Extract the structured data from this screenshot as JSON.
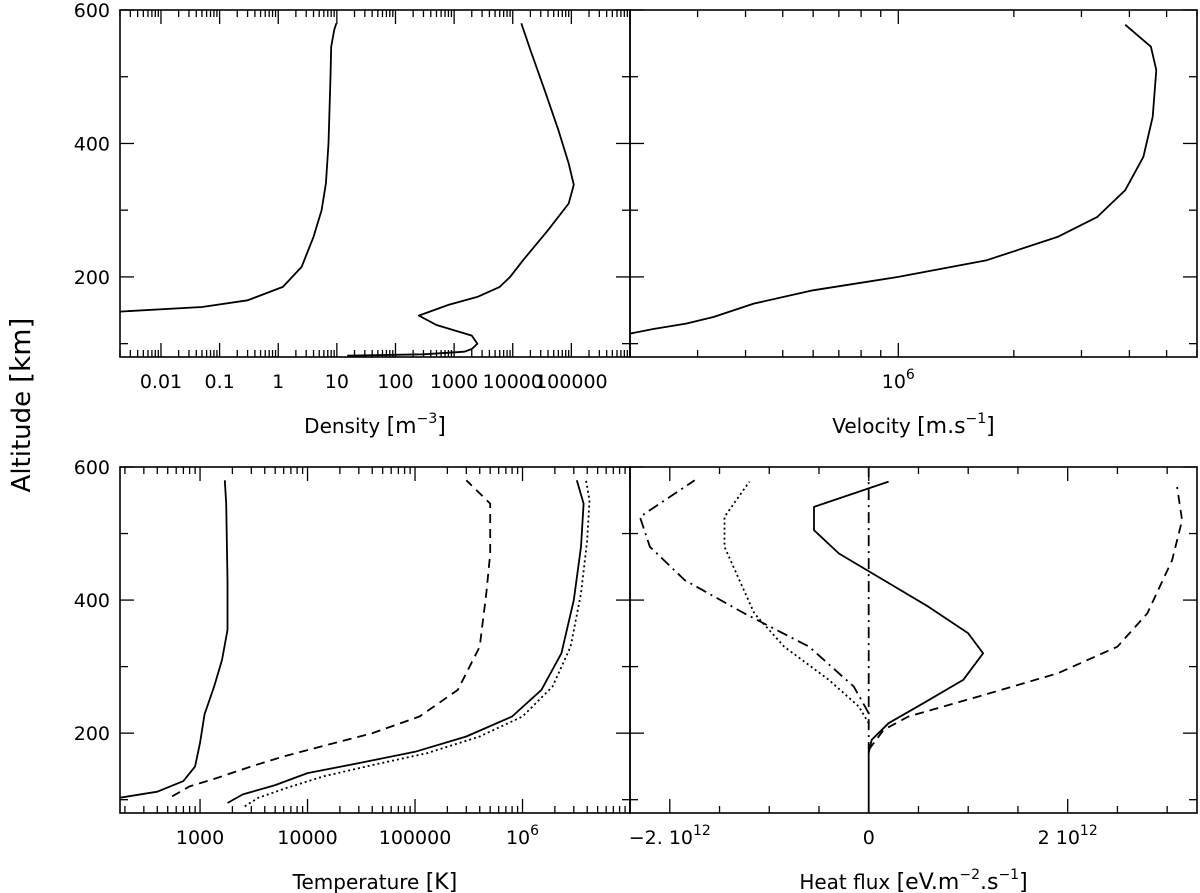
{
  "figure": {
    "ylabel": "Altitude [km]",
    "ylabel_parts": [
      "Altitude",
      "[km]"
    ]
  },
  "chart_data": [
    {
      "id": "density",
      "type": "line",
      "xlabel": "Density",
      "xlabel_unit": "[m",
      "xlabel_exp": "−3",
      "xlabel_close": "]",
      "xscale": "log",
      "xlim": [
        0.002,
        1000000
      ],
      "ylim": [
        80,
        600
      ],
      "xticks": [
        {
          "v": 0.01,
          "label": "0.01"
        },
        {
          "v": 0.1,
          "label": "0.1"
        },
        {
          "v": 1,
          "label": "1"
        },
        {
          "v": 10,
          "label": "10"
        },
        {
          "v": 100,
          "label": "100"
        },
        {
          "v": 1000,
          "label": "1000"
        },
        {
          "v": 10000,
          "label": "10000"
        },
        {
          "v": 100000,
          "label": "100000"
        }
      ],
      "yticks": [
        {
          "v": 200,
          "label": "200"
        },
        {
          "v": 400,
          "label": "400"
        },
        {
          "v": 600,
          "label": "600"
        }
      ],
      "series": [
        {
          "style": "solid",
          "points": [
            [
              0.002,
              148
            ],
            [
              0.05,
              155
            ],
            [
              0.3,
              165
            ],
            [
              1.2,
              185
            ],
            [
              2.5,
              215
            ],
            [
              4,
              260
            ],
            [
              5.5,
              300
            ],
            [
              6.5,
              340
            ],
            [
              7.2,
              400
            ],
            [
              7.8,
              500
            ],
            [
              8,
              545
            ],
            [
              9,
              570
            ],
            [
              9.8,
              580
            ]
          ]
        },
        {
          "style": "solid",
          "points": [
            [
              15,
              82
            ],
            [
              300,
              84
            ],
            [
              1500,
              88
            ],
            [
              2000,
              92
            ],
            [
              2500,
              100
            ],
            [
              2000,
              112
            ],
            [
              500,
              128
            ],
            [
              250,
              142
            ],
            [
              800,
              158
            ],
            [
              2500,
              170
            ],
            [
              6000,
              185
            ],
            [
              9000,
              200
            ],
            [
              15000,
              225
            ],
            [
              40000,
              270
            ],
            [
              90000,
              310
            ],
            [
              110000,
              338
            ],
            [
              90000,
              370
            ],
            [
              60000,
              420
            ],
            [
              35000,
              480
            ],
            [
              20000,
              540
            ],
            [
              14000,
              580
            ]
          ]
        }
      ]
    },
    {
      "id": "velocity",
      "type": "line",
      "xlabel": "Velocity",
      "xlabel_unit": "[m.s",
      "xlabel_exp": "−1",
      "xlabel_close": "]",
      "xscale": "log",
      "xlim": [
        200000,
        6000000
      ],
      "ylim": [
        80,
        600
      ],
      "xticks": [
        {
          "v": 1000000,
          "label": "10",
          "sup": "6"
        }
      ],
      "yticks": [
        {
          "v": 200,
          "label": "200"
        },
        {
          "v": 400,
          "label": "400"
        },
        {
          "v": 600,
          "label": "600"
        }
      ],
      "series": [
        {
          "style": "solid",
          "points": [
            [
              200000,
              115
            ],
            [
              230000,
              122
            ],
            [
              280000,
              130
            ],
            [
              330000,
              140
            ],
            [
              420000,
              160
            ],
            [
              600000,
              180
            ],
            [
              1000000,
              200
            ],
            [
              1700000,
              225
            ],
            [
              2600000,
              260
            ],
            [
              3300000,
              290
            ],
            [
              3900000,
              330
            ],
            [
              4350000,
              380
            ],
            [
              4600000,
              440
            ],
            [
              4700000,
              510
            ],
            [
              4550000,
              545
            ],
            [
              3900000,
              578
            ]
          ]
        }
      ]
    },
    {
      "id": "temperature",
      "type": "line",
      "xlabel": "Temperature",
      "xlabel_unit": "[K]",
      "xlabel_exp": "",
      "xlabel_close": "",
      "xscale": "log",
      "xlim": [
        180,
        10000000
      ],
      "ylim": [
        80,
        600
      ],
      "xticks": [
        {
          "v": 1000,
          "label": "1000"
        },
        {
          "v": 10000,
          "label": "10000"
        },
        {
          "v": 100000,
          "label": "100000"
        },
        {
          "v": 1000000,
          "label": "10",
          "sup": "6"
        }
      ],
      "yticks": [
        {
          "v": 200,
          "label": "200"
        },
        {
          "v": 400,
          "label": "400"
        },
        {
          "v": 600,
          "label": "600"
        }
      ],
      "series": [
        {
          "style": "solid",
          "points": [
            [
              180,
              103
            ],
            [
              400,
              112
            ],
            [
              700,
              128
            ],
            [
              900,
              150
            ],
            [
              1000,
              185
            ],
            [
              1100,
              228
            ],
            [
              1350,
              270
            ],
            [
              1600,
              310
            ],
            [
              1800,
              355
            ],
            [
              1800,
              430
            ],
            [
              1750,
              545
            ],
            [
              1700,
              580
            ]
          ]
        },
        {
          "style": "dashed",
          "points": [
            [
              550,
              105
            ],
            [
              800,
              120
            ],
            [
              1400,
              132
            ],
            [
              3000,
              150
            ],
            [
              6000,
              165
            ],
            [
              15000,
              182
            ],
            [
              40000,
              200
            ],
            [
              110000,
              225
            ],
            [
              250000,
              265
            ],
            [
              400000,
              330
            ],
            [
              460000,
              410
            ],
            [
              500000,
              470
            ],
            [
              500000,
              545
            ],
            [
              300000,
              580
            ]
          ]
        },
        {
          "style": "solid",
          "points": [
            [
              1800,
              95
            ],
            [
              2500,
              108
            ],
            [
              5000,
              122
            ],
            [
              10000,
              140
            ],
            [
              30000,
              155
            ],
            [
              100000,
              172
            ],
            [
              300000,
              195
            ],
            [
              800000,
              225
            ],
            [
              1500000,
              265
            ],
            [
              2300000,
              320
            ],
            [
              3000000,
              400
            ],
            [
              3500000,
              480
            ],
            [
              3700000,
              545
            ],
            [
              3200000,
              580
            ]
          ]
        },
        {
          "style": "dotted",
          "points": [
            [
              2600,
              90
            ],
            [
              3500,
              103
            ],
            [
              6500,
              118
            ],
            [
              14000,
              135
            ],
            [
              40000,
              152
            ],
            [
              130000,
              170
            ],
            [
              400000,
              195
            ],
            [
              1000000,
              225
            ],
            [
              1900000,
              270
            ],
            [
              2800000,
              330
            ],
            [
              3500000,
              410
            ],
            [
              4000000,
              490
            ],
            [
              4200000,
              550
            ],
            [
              3900000,
              580
            ]
          ]
        }
      ]
    },
    {
      "id": "heatflux",
      "type": "line",
      "xlabel": "Heat flux",
      "xlabel_unit": "[eV.m",
      "xlabel_exp": "−2",
      "xlabel_mid": ".s",
      "xlabel_exp2": "−1",
      "xlabel_close": "]",
      "xscale": "linear",
      "xlim": [
        -2400000000000.0,
        3300000000000.0
      ],
      "ylim": [
        80,
        600
      ],
      "xticks": [
        {
          "v": -2000000000000.0,
          "label": "−2. 10",
          "sup": "12"
        },
        {
          "v": 0,
          "label": "0"
        },
        {
          "v": 2000000000000.0,
          "label": "2 10",
          "sup": "12"
        }
      ],
      "yticks": [
        {
          "v": 200,
          "label": "200"
        },
        {
          "v": 400,
          "label": "400"
        },
        {
          "v": 600,
          "label": "600"
        }
      ],
      "series": [
        {
          "style": "solid",
          "points": [
            [
              0,
              80
            ],
            [
              0,
              170
            ],
            [
              30000000000.0,
              190
            ],
            [
              200000000000.0,
              215
            ],
            [
              550000000000.0,
              245
            ],
            [
              950000000000.0,
              280
            ],
            [
              1150000000000.0,
              320
            ],
            [
              1000000000000.0,
              350
            ],
            [
              600000000000.0,
              390
            ],
            [
              150000000000.0,
              430
            ],
            [
              -300000000000.0,
              470
            ],
            [
              -550000000000.0,
              505
            ],
            [
              -550000000000.0,
              540
            ],
            [
              200000000000.0,
              578
            ]
          ]
        },
        {
          "style": "dashed",
          "points": [
            [
              0,
              175
            ],
            [
              150000000000.0,
              205
            ],
            [
              400000000000.0,
              225
            ],
            [
              1100000000000.0,
              255
            ],
            [
              1900000000000.0,
              290
            ],
            [
              2500000000000.0,
              330
            ],
            [
              2800000000000.0,
              380
            ],
            [
              3050000000000.0,
              460
            ],
            [
              3150000000000.0,
              520
            ],
            [
              3100000000000.0,
              570
            ]
          ]
        },
        {
          "style": "dotted",
          "points": [
            [
              0,
              215
            ],
            [
              -100000000000.0,
              240
            ],
            [
              -400000000000.0,
              280
            ],
            [
              -850000000000.0,
              330
            ],
            [
              -1150000000000.0,
              380
            ],
            [
              -1300000000000.0,
              430
            ],
            [
              -1450000000000.0,
              480
            ],
            [
              -1450000000000.0,
              525
            ],
            [
              -1200000000000.0,
              578
            ]
          ]
        },
        {
          "style": "dashdot",
          "points": [
            [
              0,
              230
            ],
            [
              -150000000000.0,
              270
            ],
            [
              -600000000000.0,
              330
            ],
            [
              -1250000000000.0,
              380
            ],
            [
              -1850000000000.0,
              430
            ],
            [
              -2200000000000.0,
              480
            ],
            [
              -2300000000000.0,
              525
            ],
            [
              -1750000000000.0,
              580
            ]
          ]
        },
        {
          "style": "dashdot",
          "points": [
            [
              0,
              170
            ],
            [
              0,
              600
            ]
          ]
        }
      ]
    }
  ]
}
